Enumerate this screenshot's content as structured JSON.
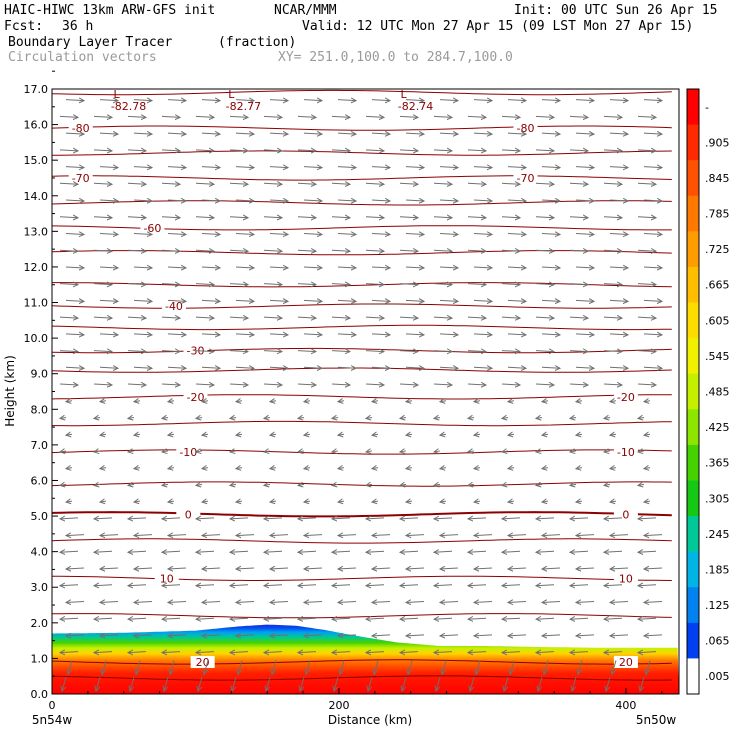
{
  "header": {
    "model": "HAIC-HIWC 13km ARW-GFS init",
    "center": "NCAR/MMM",
    "init": "Init: 00 UTC Sun 26 Apr 15",
    "fcst_label": "Fcst:",
    "fcst_value": "36 h",
    "valid": "Valid: 12 UTC Mon 27 Apr 15 (09 LST Mon 27 Apr 15)",
    "field": "Boundary Layer Tracer",
    "field_units": "(fraction)",
    "overlay": "Circulation vectors",
    "xy_range": "XY= 251.0,100.0 to 284.7,100.0"
  },
  "chart_data": {
    "type": "heatmap",
    "xlabel": "Distance (km)",
    "ylabel": "Height (km)",
    "xlim": [
      0,
      437
    ],
    "ylim": [
      0,
      17
    ],
    "x_ticks": [
      0,
      200,
      400
    ],
    "y_ticks": [
      "0.0",
      "1.0",
      "2.0",
      "3.0",
      "4.0",
      "5.0",
      "6.0",
      "7.0",
      "8.0",
      "9.0",
      "10.0",
      "11.0",
      "12.0",
      "13.0",
      "14.0",
      "15.0",
      "16.0",
      "17.0"
    ],
    "x_endpoints": [
      "5n54w",
      "5n50w"
    ],
    "shaded_field": {
      "name": "Boundary Layer Tracer",
      "units": "fraction",
      "top_km_profile": [
        [
          0,
          1.7
        ],
        [
          50,
          1.72
        ],
        [
          100,
          1.78
        ],
        [
          130,
          1.9
        ],
        [
          150,
          1.95
        ],
        [
          170,
          1.92
        ],
        [
          190,
          1.8
        ],
        [
          210,
          1.65
        ],
        [
          240,
          1.45
        ],
        [
          270,
          1.35
        ],
        [
          300,
          1.35
        ],
        [
          340,
          1.32
        ],
        [
          380,
          1.3
        ],
        [
          420,
          1.3
        ],
        [
          437,
          1.3
        ]
      ]
    },
    "colorbar": {
      "labels": [
        "-",
        ".905",
        ".845",
        ".785",
        ".725",
        ".665",
        ".605",
        ".545",
        ".485",
        ".425",
        ".365",
        ".305",
        ".245",
        ".185",
        ".125",
        ".065",
        ".005"
      ],
      "colors": [
        "#ff0000",
        "#ff2a00",
        "#ff5200",
        "#ff7800",
        "#ff9c00",
        "#ffbe00",
        "#ffdc00",
        "#f0f000",
        "#c4f000",
        "#8ce600",
        "#46d200",
        "#14c814",
        "#00c896",
        "#00b4e6",
        "#0082f0",
        "#0040f0",
        "#ffffff"
      ]
    },
    "contours": {
      "name": "temperature",
      "color": "#8b0000",
      "levels": [
        {
          "value": -80,
          "height_km": 15.9,
          "label": "-80",
          "label_x_km": [
            20,
            330
          ]
        },
        {
          "value": -70,
          "height_km": 14.5,
          "label": "-70",
          "label_x_km": [
            20,
            330
          ]
        },
        {
          "value": -60,
          "height_km": 13.1,
          "label": "-60",
          "label_x_km": [
            70
          ]
        },
        {
          "value": -40,
          "height_km": 10.9,
          "label": "-40",
          "label_x_km": [
            85
          ]
        },
        {
          "value": -30,
          "height_km": 9.65,
          "label": "-30",
          "label_x_km": [
            100
          ]
        },
        {
          "value": -20,
          "height_km": 8.35,
          "label": "-20",
          "label_x_km": [
            100,
            400
          ]
        },
        {
          "value": -10,
          "height_km": 6.8,
          "label": "-10",
          "label_x_km": [
            95,
            400
          ]
        },
        {
          "value": 0,
          "height_km": 5.05,
          "label": "0",
          "label_x_km": [
            95,
            400
          ]
        },
        {
          "value": 10,
          "height_km": 3.25,
          "label": "10",
          "label_x_km": [
            80,
            400
          ]
        },
        {
          "value": 20,
          "height_km": 0.9,
          "label": "20",
          "label_x_km": [
            105,
            400
          ]
        },
        {
          "height_km": 16.9
        },
        {
          "height_km": 15.2
        },
        {
          "height_km": 13.8
        },
        {
          "height_km": 12.4
        },
        {
          "height_km": 11.5
        },
        {
          "height_km": 10.3
        },
        {
          "height_km": 9.1
        },
        {
          "height_km": 7.6
        },
        {
          "height_km": 5.9
        },
        {
          "height_km": 4.3
        },
        {
          "height_km": 2.2
        },
        {
          "height_km": 0.45
        }
      ]
    },
    "lows": [
      {
        "x_km": 45,
        "height_km": 16.75,
        "value": "-82.78"
      },
      {
        "x_km": 125,
        "height_km": 16.75,
        "value": "-82.77"
      },
      {
        "x_km": 245,
        "height_km": 16.75,
        "value": "-82.74"
      }
    ],
    "vectors": {
      "name": "Circulation vectors",
      "color": "#707070",
      "direction_by_layer": [
        {
          "from_km": 0,
          "to_km": 0.9,
          "direction": "down"
        },
        {
          "from_km": 0.9,
          "to_km": 5.0,
          "direction": "west"
        },
        {
          "from_km": 5.0,
          "to_km": 8.5,
          "direction": "light"
        },
        {
          "from_km": 8.5,
          "to_km": 17.0,
          "direction": "east"
        }
      ]
    }
  }
}
